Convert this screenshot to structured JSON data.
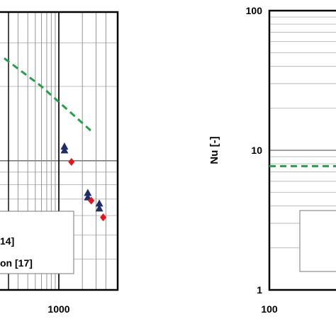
{
  "chart_data": [
    {
      "type": "scatter",
      "title": "",
      "xlabel": "",
      "ylabel": "",
      "x_scale": "log",
      "y_scale": "log",
      "visible_x_ticks": [
        "1000"
      ],
      "x_tick_values": [
        1000
      ],
      "xlim": [
        200,
        5000
      ],
      "ylim": [
        3,
        40
      ],
      "grid": true,
      "legend_visible_fragments": [
        "14]",
        "on [17]"
      ],
      "legend_placement": "bottom-left",
      "series": [
        {
          "marker": "line-dashed",
          "color": "#22a04a",
          "points": [
            [
              200,
              26
            ],
            [
              600,
              20
            ],
            [
              2600,
              13.2
            ]
          ]
        },
        {
          "marker": "triangle",
          "color": "#1f2d6b",
          "points": [
            [
              1180,
              11.4
            ],
            [
              1180,
              11.0
            ],
            [
              2350,
              7.4
            ],
            [
              2350,
              7.1
            ],
            [
              3300,
              6.7
            ],
            [
              3300,
              6.4
            ]
          ]
        },
        {
          "marker": "diamond",
          "color": "#e8121b",
          "points": [
            [
              1450,
              9.9
            ],
            [
              2600,
              6.9
            ],
            [
              3700,
              5.9
            ]
          ]
        }
      ]
    },
    {
      "type": "line",
      "title": "",
      "xlabel": "",
      "ylabel": "Nu [-]",
      "x_scale": "log",
      "y_scale": "log",
      "visible_x_ticks": [
        "100"
      ],
      "x_tick_values": [
        100
      ],
      "y_ticks": [
        "1",
        "10",
        "100"
      ],
      "y_tick_values": [
        1,
        10,
        100
      ],
      "xlim": [
        100,
        160
      ],
      "ylim": [
        1,
        100
      ],
      "grid": true,
      "series": [
        {
          "marker": "line-dashed",
          "color": "#22a04a",
          "points": [
            [
              100,
              7.7
            ],
            [
              160,
              7.7
            ]
          ]
        }
      ]
    }
  ]
}
